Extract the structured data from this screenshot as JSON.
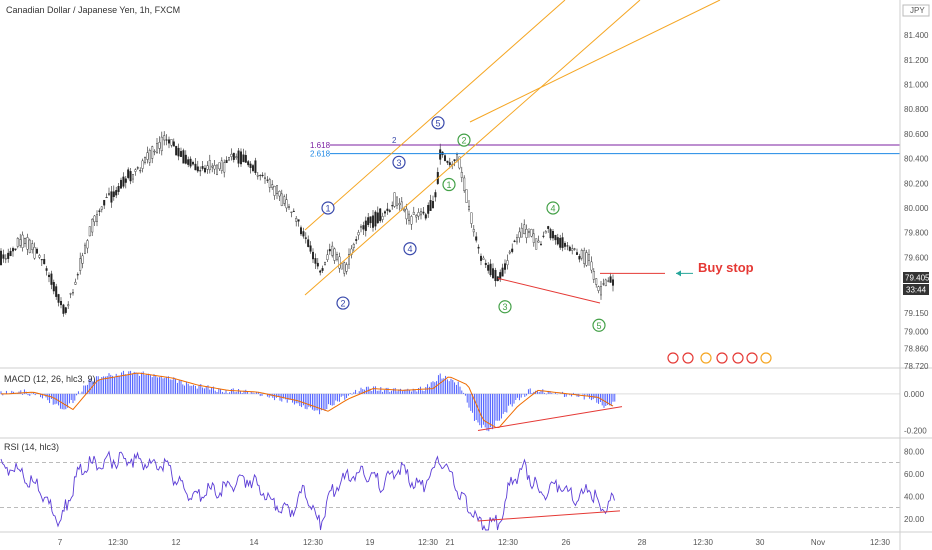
{
  "chart_data": {
    "type": "line",
    "title": "Canadian Dollar / Japanese Yen, 1h, FXCM",
    "currency": "JPY",
    "price_axis": {
      "ylim": [
        78.72,
        81.62
      ],
      "ticks": [
        "81.400",
        "81.200",
        "81.000",
        "80.800",
        "80.600",
        "80.400",
        "80.200",
        "80.000",
        "79.800",
        "79.600",
        "79.150",
        "79.000",
        "78.860",
        "78.720"
      ],
      "last_price": "79.405",
      "countdown": "33:44"
    },
    "time_axis": {
      "ticks": [
        "7",
        "12:30",
        "12",
        "14",
        "12:30",
        "19",
        "12:30",
        "21",
        "12:30",
        "26",
        "28",
        "12:30",
        "30",
        "Nov",
        "12:30"
      ]
    },
    "price_series": {
      "name": "CAD/JPY",
      "keypoints": [
        [
          0,
          79.62
        ],
        [
          25,
          79.78
        ],
        [
          45,
          79.55
        ],
        [
          65,
          79.2
        ],
        [
          95,
          79.95
        ],
        [
          130,
          80.3
        ],
        [
          165,
          80.57
        ],
        [
          190,
          80.4
        ],
        [
          220,
          80.35
        ],
        [
          240,
          80.45
        ],
        [
          265,
          80.3
        ],
        [
          290,
          80.0
        ],
        [
          305,
          79.8
        ],
        [
          320,
          79.52
        ],
        [
          330,
          79.7
        ],
        [
          345,
          79.52
        ],
        [
          365,
          79.9
        ],
        [
          378,
          79.95
        ],
        [
          395,
          80.1
        ],
        [
          410,
          79.95
        ],
        [
          425,
          79.95
        ],
        [
          435,
          80.1
        ],
        [
          441,
          80.5
        ],
        [
          450,
          80.4
        ],
        [
          458,
          80.45
        ],
        [
          470,
          80.0
        ],
        [
          480,
          79.6
        ],
        [
          500,
          79.45
        ],
        [
          515,
          79.8
        ],
        [
          528,
          79.85
        ],
        [
          540,
          79.7
        ],
        [
          548,
          79.85
        ],
        [
          560,
          79.75
        ],
        [
          575,
          79.7
        ],
        [
          590,
          79.6
        ],
        [
          600,
          79.35
        ],
        [
          610,
          79.42
        ],
        [
          615,
          79.4
        ]
      ]
    },
    "fib_levels": [
      {
        "label": "1.618",
        "value": 80.51
      },
      {
        "label": "2.618",
        "value": 80.44
      }
    ],
    "fib_marker": "2",
    "wave_labels": [
      {
        "text": "1",
        "x": 328,
        "y": 80.0
      },
      {
        "text": "2",
        "x": 343,
        "y": 79.23
      },
      {
        "text": "3",
        "x": 399,
        "y": 80.37
      },
      {
        "text": "4",
        "x": 410,
        "y": 79.67
      },
      {
        "text": "5",
        "x": 438,
        "y": 80.69
      },
      {
        "text": "2",
        "x": 464,
        "y": 80.55
      },
      {
        "text": "1",
        "x": 449,
        "y": 80.19
      },
      {
        "text": "4",
        "x": 553,
        "y": 80.0
      },
      {
        "text": "3",
        "x": 505,
        "y": 79.2
      },
      {
        "text": "5",
        "x": 599,
        "y": 79.05
      }
    ],
    "annotation": {
      "text": "Buy stop",
      "value": 79.47
    },
    "macd": {
      "title": "MACD (12, 26, hlc3, 9)",
      "ylim": [
        -0.23,
        0.13
      ],
      "ticks": [
        "0.000",
        "-0.200"
      ],
      "keypoints": [
        [
          0,
          0.0
        ],
        [
          25,
          0.01
        ],
        [
          45,
          -0.02
        ],
        [
          65,
          -0.09
        ],
        [
          90,
          0.08
        ],
        [
          130,
          0.12
        ],
        [
          165,
          0.09
        ],
        [
          190,
          0.05
        ],
        [
          220,
          0.02
        ],
        [
          250,
          0.01
        ],
        [
          290,
          -0.04
        ],
        [
          320,
          -0.1
        ],
        [
          340,
          -0.03
        ],
        [
          365,
          0.03
        ],
        [
          395,
          0.02
        ],
        [
          425,
          0.03
        ],
        [
          441,
          0.1
        ],
        [
          460,
          0.05
        ],
        [
          475,
          -0.15
        ],
        [
          490,
          -0.2
        ],
        [
          510,
          -0.07
        ],
        [
          530,
          0.02
        ],
        [
          560,
          0.0
        ],
        [
          590,
          -0.02
        ],
        [
          605,
          -0.07
        ],
        [
          615,
          -0.05
        ]
      ]
    },
    "rsi": {
      "title": "RSI (14, hlc3)",
      "ylim": [
        10,
        90
      ],
      "ticks": [
        "80.00",
        "60.00",
        "40.00",
        "20.00"
      ],
      "levels": [
        70,
        30
      ],
      "keypoints": [
        [
          0,
          70
        ],
        [
          20,
          65
        ],
        [
          40,
          50
        ],
        [
          60,
          20
        ],
        [
          80,
          70
        ],
        [
          100,
          75
        ],
        [
          130,
          78
        ],
        [
          165,
          70
        ],
        [
          190,
          45
        ],
        [
          220,
          50
        ],
        [
          250,
          60
        ],
        [
          270,
          40
        ],
        [
          290,
          30
        ],
        [
          305,
          50
        ],
        [
          320,
          18
        ],
        [
          330,
          45
        ],
        [
          345,
          60
        ],
        [
          365,
          65
        ],
        [
          380,
          55
        ],
        [
          400,
          70
        ],
        [
          420,
          50
        ],
        [
          441,
          78
        ],
        [
          455,
          55
        ],
        [
          470,
          30
        ],
        [
          480,
          18
        ],
        [
          500,
          20
        ],
        [
          510,
          55
        ],
        [
          525,
          70
        ],
        [
          540,
          45
        ],
        [
          560,
          55
        ],
        [
          575,
          40
        ],
        [
          590,
          50
        ],
        [
          600,
          35
        ],
        [
          615,
          40
        ]
      ]
    }
  }
}
